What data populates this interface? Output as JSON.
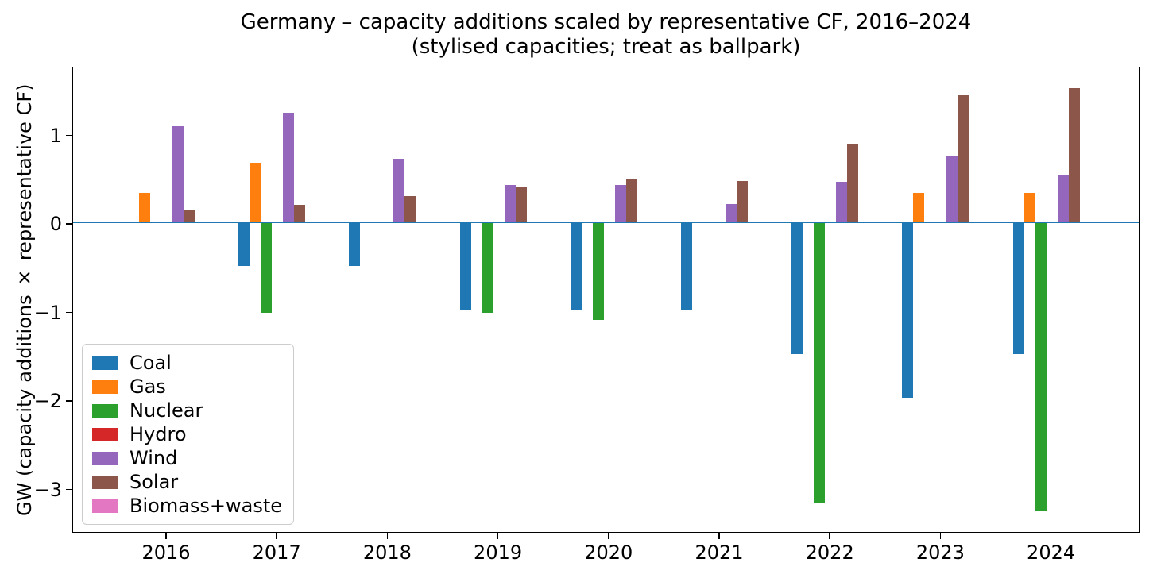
{
  "chart_data": {
    "type": "bar",
    "title": "Germany – capacity additions scaled by representative CF, 2016–2024",
    "subtitle": "(stylised capacities; treat as ballpark)",
    "ylabel": "GW (capacity additions × representative CF)",
    "xlabel": "",
    "categories": [
      "2016",
      "2017",
      "2018",
      "2019",
      "2020",
      "2021",
      "2022",
      "2023",
      "2024"
    ],
    "ylim": [
      -3.5,
      1.77
    ],
    "yticks": [
      1,
      0,
      -1,
      -2,
      -3
    ],
    "ytick_labels": [
      "1",
      "0",
      "−1",
      "−2",
      "−3"
    ],
    "grid": false,
    "legend_position": "lower left",
    "zero_line_color": "#1f77b4",
    "series": [
      {
        "name": "Coal",
        "color": "#1f77b4",
        "values": [
          0,
          -0.49,
          -0.49,
          -0.99,
          -0.99,
          -0.99,
          -1.48,
          -1.98,
          -1.48
        ]
      },
      {
        "name": "Gas",
        "color": "#ff7f0e",
        "values": [
          0.34,
          0.68,
          0,
          0,
          0,
          0,
          0,
          0.34,
          0.34
        ]
      },
      {
        "name": "Nuclear",
        "color": "#2ca02c",
        "values": [
          0,
          -1.02,
          0,
          -1.02,
          -1.1,
          0,
          -3.17,
          0,
          -3.26
        ]
      },
      {
        "name": "Hydro",
        "color": "#d62728",
        "values": [
          0,
          0,
          0,
          0,
          0,
          0,
          0,
          0,
          0
        ]
      },
      {
        "name": "Wind",
        "color": "#9467bd",
        "values": [
          1.09,
          1.24,
          0.72,
          0.43,
          0.43,
          0.21,
          0.46,
          0.76,
          0.53
        ]
      },
      {
        "name": "Solar",
        "color": "#8c564b",
        "values": [
          0.15,
          0.2,
          0.3,
          0.4,
          0.5,
          0.47,
          0.88,
          1.44,
          1.52
        ]
      },
      {
        "name": "Biomass+waste",
        "color": "#e377c2",
        "values": [
          0,
          0,
          0,
          0,
          0,
          0,
          0,
          0,
          0
        ]
      }
    ]
  }
}
